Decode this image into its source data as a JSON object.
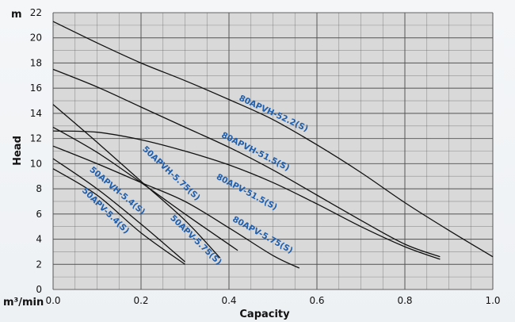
{
  "chart_data": {
    "type": "line",
    "title": "",
    "xlabel": "Capacity",
    "ylabel": "Head",
    "x_unit": "m³/min",
    "y_unit": "m",
    "xlim": [
      0,
      1.0
    ],
    "ylim": [
      0,
      22
    ],
    "x_ticks": [
      "0.0",
      "0.2",
      "0.4",
      "0.6",
      "0.8",
      "1.0"
    ],
    "y_ticks": [
      "0",
      "2",
      "4",
      "6",
      "8",
      "10",
      "12",
      "14",
      "16",
      "18",
      "20",
      "22"
    ],
    "grid": true,
    "colors": {
      "plot_bg": "#d9d9d9",
      "grid": "#555555",
      "curve": "#111111",
      "label": "#1f5fae"
    },
    "series": [
      {
        "name": "80APVH-52.2(S)",
        "x": [
          0,
          0.1,
          0.2,
          0.3,
          0.4,
          0.5,
          0.6,
          0.7,
          0.8,
          0.9,
          1.0
        ],
        "y": [
          21.3,
          19.6,
          18.0,
          16.6,
          15.1,
          13.5,
          11.5,
          9.3,
          6.9,
          4.7,
          2.6
        ]
      },
      {
        "name": "80APVH-51.5(S)",
        "x": [
          0,
          0.1,
          0.2,
          0.3,
          0.4,
          0.5,
          0.6,
          0.7,
          0.8,
          0.88
        ],
        "y": [
          17.5,
          16.1,
          14.5,
          12.9,
          11.3,
          9.5,
          7.5,
          5.5,
          3.6,
          2.6
        ]
      },
      {
        "name": "80APV-51.5(S)",
        "x": [
          0,
          0.1,
          0.2,
          0.3,
          0.4,
          0.5,
          0.6,
          0.7,
          0.8,
          0.88
        ],
        "y": [
          12.6,
          12.5,
          11.9,
          11.0,
          9.9,
          8.5,
          6.8,
          5.0,
          3.4,
          2.4
        ]
      },
      {
        "name": "80APV-5.75(S)",
        "x": [
          0,
          0.1,
          0.2,
          0.3,
          0.4,
          0.5,
          0.56
        ],
        "y": [
          11.4,
          10.0,
          8.5,
          7.0,
          4.9,
          2.7,
          1.7
        ]
      },
      {
        "name": "50APVH-5.75(S)",
        "x": [
          0,
          0.1,
          0.2,
          0.3,
          0.38
        ],
        "y": [
          14.7,
          11.7,
          8.6,
          5.5,
          2.5
        ]
      },
      {
        "name": "50APV-5.75(S)",
        "x": [
          0,
          0.1,
          0.2,
          0.3,
          0.42
        ],
        "y": [
          12.9,
          10.9,
          8.5,
          6.0,
          3.1
        ]
      },
      {
        "name": "50APVH-5.4(S)",
        "x": [
          0,
          0.1,
          0.2,
          0.3
        ],
        "y": [
          10.4,
          8.0,
          5.2,
          2.2
        ]
      },
      {
        "name": "50APV-5.4(S)",
        "x": [
          0,
          0.1,
          0.2,
          0.3
        ],
        "y": [
          9.6,
          7.5,
          4.5,
          2.0
        ]
      }
    ]
  }
}
